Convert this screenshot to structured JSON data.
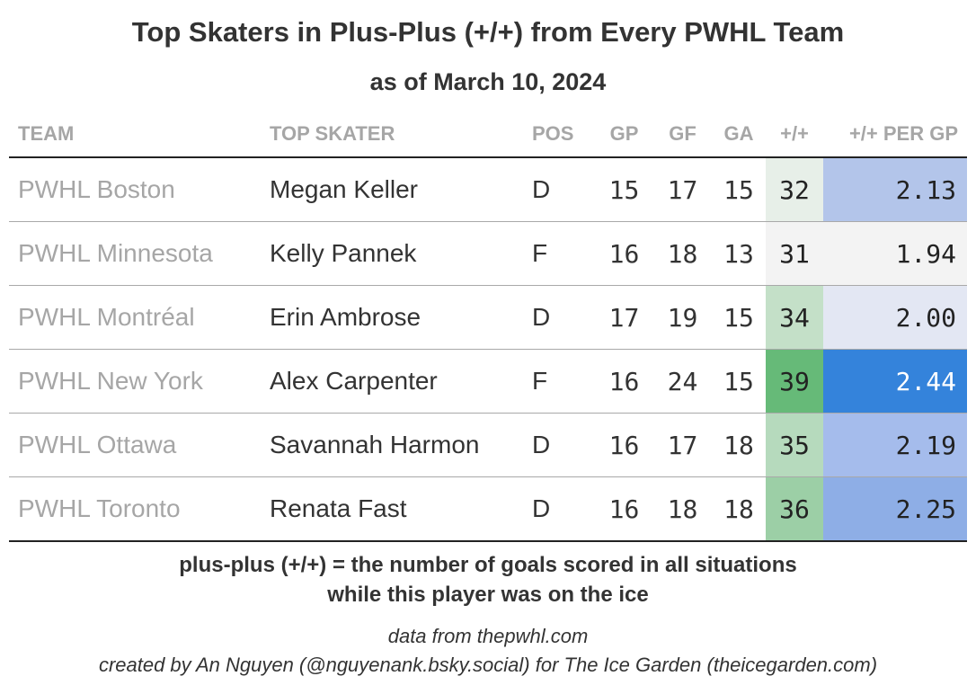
{
  "chart_data": {
    "type": "table",
    "title": "Top Skaters in Plus-Plus (+/+) from Every PWHL Team",
    "subtitle": "as of March 10, 2024",
    "columns": [
      "TEAM",
      "TOP SKATER",
      "POS",
      "GP",
      "GF",
      "GA",
      "+/+",
      "+/+ PER GP"
    ],
    "rows": [
      {
        "team": "PWHL Boston",
        "skater": "Megan Keller",
        "pos": "D",
        "gp": "15",
        "gf": "17",
        "ga": "15",
        "pp": "32",
        "per_gp": "2.13",
        "pp_color": "#e7efe8",
        "per_color": "#b3c5ea",
        "per_text": "#222222"
      },
      {
        "team": "PWHL Minnesota",
        "skater": "Kelly Pannek",
        "pos": "F",
        "gp": "16",
        "gf": "18",
        "ga": "13",
        "pp": "31",
        "per_gp": "1.94",
        "pp_color": "#f3f3f3",
        "per_color": "#f3f3f3",
        "per_text": "#222222"
      },
      {
        "team": "PWHL Montréal",
        "skater": "Erin Ambrose",
        "pos": "D",
        "gp": "17",
        "gf": "19",
        "ga": "15",
        "pp": "34",
        "per_gp": "2.00",
        "pp_color": "#c4e0c8",
        "per_color": "#e3e7f3",
        "per_text": "#222222"
      },
      {
        "team": "PWHL New York",
        "skater": "Alex Carpenter",
        "pos": "F",
        "gp": "16",
        "gf": "24",
        "ga": "15",
        "pp": "39",
        "per_gp": "2.44",
        "pp_color": "#66ba78",
        "per_color": "#3483db",
        "per_text": "#ffffff"
      },
      {
        "team": "PWHL Ottawa",
        "skater": "Savannah Harmon",
        "pos": "D",
        "gp": "16",
        "gf": "17",
        "ga": "18",
        "pp": "35",
        "per_gp": "2.19",
        "pp_color": "#b6dabd",
        "per_color": "#a5bcec",
        "per_text": "#222222"
      },
      {
        "team": "PWHL Toronto",
        "skater": "Renata Fast",
        "pos": "D",
        "gp": "16",
        "gf": "18",
        "ga": "18",
        "pp": "36",
        "per_gp": "2.25",
        "pp_color": "#9ccfa6",
        "per_color": "#8eaee6",
        "per_text": "#222222"
      }
    ]
  },
  "footnote": {
    "line1": "plus-plus (+/+) = the number of goals scored in all situations",
    "line2": "while this player was on the ice"
  },
  "credit": {
    "line1": "data from thepwhl.com",
    "line2": "created by An Nguyen (@nguyenank.bsky.social) for The Ice Garden (theicegarden.com)"
  }
}
